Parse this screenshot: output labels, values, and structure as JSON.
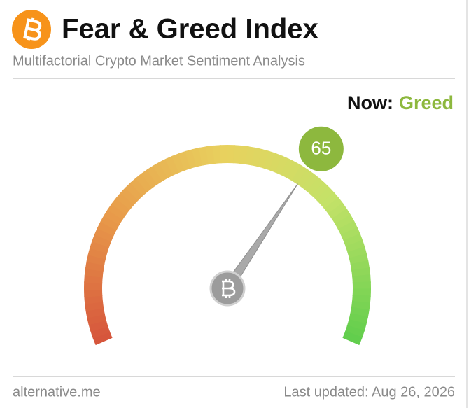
{
  "chart_data": {
    "type": "gauge",
    "title": "Fear & Greed Index",
    "subtitle": "Multifactorial Crypto Market Sentiment Analysis",
    "status_prefix": "Now:",
    "status": "Greed",
    "value": 65,
    "ylim": [
      0,
      100
    ],
    "color": "#8db83e",
    "source": "alternative.me",
    "updated": "Last updated: Aug 26, 2026"
  }
}
